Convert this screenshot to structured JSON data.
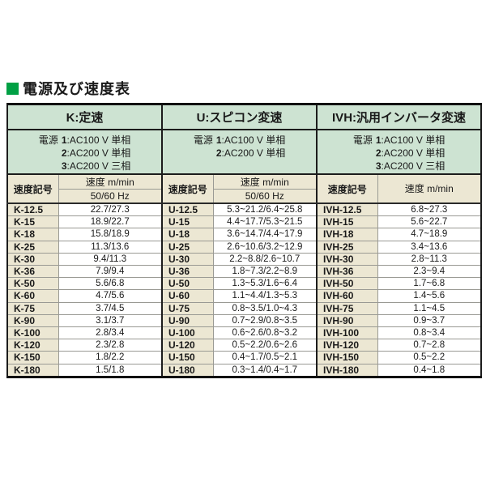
{
  "title": "電源及び速度表",
  "colors": {
    "accent_green": "#00a044",
    "header_bg": "#cde3d2",
    "code_bg": "#ece7d3",
    "border_dark": "#1c1c1c",
    "border_thin": "#9a9a94"
  },
  "table": {
    "sections": [
      {
        "name": "K",
        "header": "K:定速",
        "power_label": "電源",
        "power_options": [
          {
            "num": "1",
            "desc": ":AC100 V 単相"
          },
          {
            "num": "2",
            "desc": ":AC200 V 単相"
          },
          {
            "num": "3",
            "desc": ":AC200 V 三相"
          }
        ],
        "code_header": "速度記号",
        "speed_header": "速度 m/min",
        "freq_header": "50/60 Hz"
      },
      {
        "name": "U",
        "header": "U:スピコン変速",
        "power_label": "電源",
        "power_options": [
          {
            "num": "1",
            "desc": ":AC100 V 単相"
          },
          {
            "num": "2",
            "desc": ":AC200 V 単相"
          }
        ],
        "code_header": "速度記号",
        "speed_header": "速度 m/min",
        "freq_header": "50/60 Hz"
      },
      {
        "name": "IVH",
        "header": "IVH:汎用インバータ変速",
        "power_label": "電源",
        "power_options": [
          {
            "num": "1",
            "desc": ":AC100 V 単相"
          },
          {
            "num": "2",
            "desc": ":AC200 V 単相"
          },
          {
            "num": "3",
            "desc": ":AC200 V 三相"
          }
        ],
        "code_header": "速度記号",
        "speed_header": "速度 m/min",
        "freq_header": null
      }
    ],
    "rows": [
      [
        "K-12.5",
        "22.7/27.3",
        "U-12.5",
        "5.3~21.2/6.4~25.8",
        "IVH-12.5",
        "6.8~27.3"
      ],
      [
        "K-15",
        "18.9/22.7",
        "U-15",
        "4.4~17.7/5.3~21.5",
        "IVH-15",
        "5.6~22.7"
      ],
      [
        "K-18",
        "15.8/18.9",
        "U-18",
        "3.6~14.7/4.4~17.9",
        "IVH-18",
        "4.7~18.9"
      ],
      [
        "K-25",
        "11.3/13.6",
        "U-25",
        "2.6~10.6/3.2~12.9",
        "IVH-25",
        "3.4~13.6"
      ],
      [
        "K-30",
        "9.4/11.3",
        "U-30",
        "2.2~8.8/2.6~10.7",
        "IVH-30",
        "2.8~11.3"
      ],
      [
        "K-36",
        "7.9/9.4",
        "U-36",
        "1.8~7.3/2.2~8.9",
        "IVH-36",
        "2.3~9.4"
      ],
      [
        "K-50",
        "5.6/6.8",
        "U-50",
        "1.3~5.3/1.6~6.4",
        "IVH-50",
        "1.7~6.8"
      ],
      [
        "K-60",
        "4.7/5.6",
        "U-60",
        "1.1~4.4/1.3~5.3",
        "IVH-60",
        "1.4~5.6"
      ],
      [
        "K-75",
        "3.7/4.5",
        "U-75",
        "0.8~3.5/1.0~4.3",
        "IVH-75",
        "1.1~4.5"
      ],
      [
        "K-90",
        "3.1/3.7",
        "U-90",
        "0.7~2.9/0.8~3.5",
        "IVH-90",
        "0.9~3.7"
      ],
      [
        "K-100",
        "2.8/3.4",
        "U-100",
        "0.6~2.6/0.8~3.2",
        "IVH-100",
        "0.8~3.4"
      ],
      [
        "K-120",
        "2.3/2.8",
        "U-120",
        "0.5~2.2/0.6~2.6",
        "IVH-120",
        "0.7~2.8"
      ],
      [
        "K-150",
        "1.8/2.2",
        "U-150",
        "0.4~1.7/0.5~2.1",
        "IVH-150",
        "0.5~2.2"
      ],
      [
        "K-180",
        "1.5/1.8",
        "U-180",
        "0.3~1.4/0.4~1.7",
        "IVH-180",
        "0.4~1.8"
      ]
    ]
  }
}
